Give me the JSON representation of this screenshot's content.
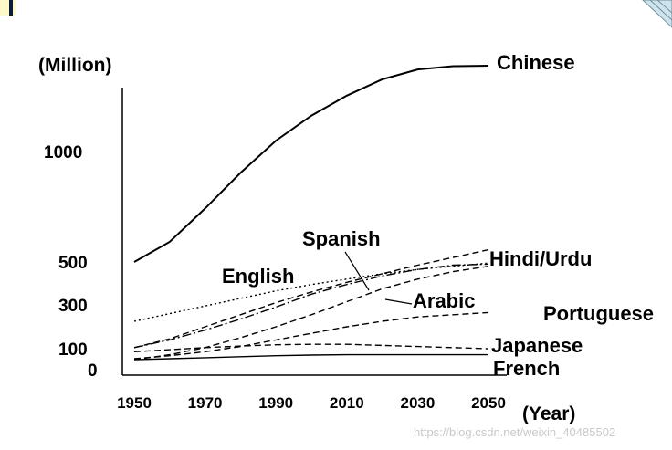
{
  "chart_data": {
    "type": "line",
    "title": "",
    "ylabel": "(Million)",
    "xlabel": "(Year)",
    "x": [
      1950,
      1960,
      1970,
      1980,
      1990,
      2000,
      2010,
      2020,
      2030,
      2040,
      2050
    ],
    "xticks": [
      "1950",
      "1970",
      "1990",
      "2010",
      "2030",
      "2050"
    ],
    "yticks": [
      {
        "label": "0",
        "value": 0
      },
      {
        "label": "100",
        "value": 100
      },
      {
        "label": "300",
        "value": 300
      },
      {
        "label": "500",
        "value": 500
      },
      {
        "label": "1000",
        "value": 1000
      }
    ],
    "series": [
      {
        "name": "Chinese",
        "style": "solid",
        "values": [
          500,
          590,
          740,
          900,
          1040,
          1140,
          1220,
          1285,
          1325,
          1338,
          1340
        ]
      },
      {
        "name": "Hindi/Urdu",
        "style": "dash",
        "values": [
          105,
          145,
          200,
          255,
          310,
          360,
          405,
          445,
          485,
          520,
          555
        ]
      },
      {
        "name": "Spanish",
        "style": "dashdot",
        "values": [
          105,
          140,
          185,
          235,
          290,
          350,
          395,
          435,
          465,
          485,
          490
        ]
      },
      {
        "name": "English",
        "style": "dot",
        "values": [
          225,
          260,
          295,
          330,
          365,
          395,
          420,
          445,
          465,
          480,
          495
        ]
      },
      {
        "name": "Arabic",
        "style": "dash",
        "values": [
          45,
          70,
          105,
          150,
          200,
          255,
          315,
          375,
          420,
          455,
          480
        ]
      },
      {
        "name": "Portuguese",
        "style": "dash",
        "values": [
          50,
          65,
          85,
          110,
          140,
          170,
          200,
          225,
          245,
          255,
          265
        ]
      },
      {
        "name": "Japanese",
        "style": "dash",
        "values": [
          85,
          95,
          105,
          112,
          118,
          120,
          120,
          115,
          110,
          105,
          100
        ]
      },
      {
        "name": "French",
        "style": "solid",
        "values": [
          45,
          50,
          55,
          60,
          65,
          68,
          70,
          70,
          70,
          70,
          70
        ]
      }
    ],
    "annotations": [
      "Chinese",
      "Spanish",
      "Hindi/Urdu",
      "English",
      "Arabic",
      "Portuguese",
      "Japanese",
      "French"
    ]
  },
  "watermark": "https://blog.csdn.net/weixin_40485502"
}
